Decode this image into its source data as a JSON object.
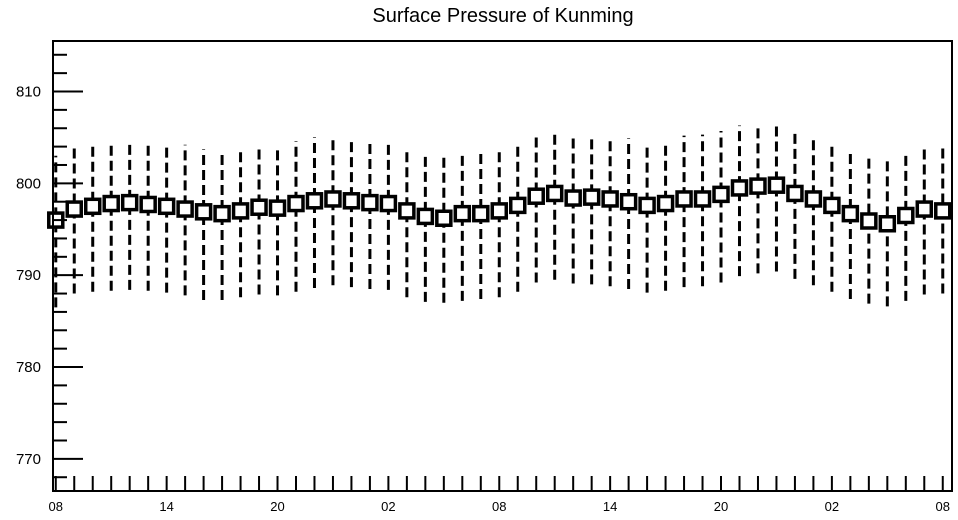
{
  "chart_data": {
    "type": "boxplot",
    "title": "Surface Pressure of Kunming",
    "xlabel": "",
    "ylabel": "",
    "ylim": [
      766.5,
      815.5
    ],
    "yticks": [
      770,
      780,
      790,
      800,
      810
    ],
    "ytick_labels": [
      "770",
      "780",
      "790",
      "800",
      "810"
    ],
    "x_range": [
      -0.15,
      48.5
    ],
    "xticks": [
      0,
      6,
      12,
      18,
      24,
      30,
      36,
      42,
      48
    ],
    "xtick_labels": [
      "08",
      "14",
      "20",
      "02",
      "08",
      "14",
      "20",
      "02",
      "08"
    ],
    "series": [
      {
        "x": [
          0,
          1,
          2,
          3,
          4,
          5,
          6,
          7,
          8,
          9,
          10,
          11,
          12,
          13,
          14,
          15,
          16,
          17,
          18,
          19,
          20,
          21,
          22,
          23,
          24,
          25,
          26,
          27,
          28,
          29,
          30,
          31,
          32,
          33,
          34,
          35,
          36,
          37,
          38,
          39,
          40,
          41,
          42,
          43,
          44,
          45,
          46,
          47,
          48
        ],
        "median": [
          796.0,
          797.2,
          797.5,
          797.8,
          797.9,
          797.7,
          797.5,
          797.2,
          796.9,
          796.7,
          797.0,
          797.4,
          797.3,
          797.8,
          798.1,
          798.3,
          798.1,
          797.9,
          797.8,
          797.0,
          796.4,
          796.2,
          796.7,
          796.7,
          797.0,
          797.6,
          798.6,
          798.9,
          798.4,
          798.5,
          798.3,
          798.0,
          797.6,
          797.8,
          798.3,
          798.3,
          798.8,
          799.5,
          799.7,
          799.8,
          798.9,
          798.3,
          797.6,
          796.7,
          795.9,
          795.6,
          796.5,
          797.2,
          797.0
        ],
        "min": [
          786.5,
          788.0,
          788.2,
          788.3,
          788.4,
          788.3,
          788.1,
          787.8,
          787.3,
          787.3,
          787.6,
          787.9,
          787.8,
          788.2,
          788.6,
          788.9,
          788.7,
          788.5,
          788.4,
          787.6,
          787.1,
          787.0,
          787.2,
          787.4,
          787.6,
          788.2,
          789.2,
          789.5,
          789.1,
          789.0,
          788.8,
          788.5,
          788.1,
          788.3,
          788.7,
          788.8,
          789.2,
          789.9,
          790.2,
          790.4,
          789.6,
          788.9,
          788.2,
          787.4,
          786.9,
          786.6,
          787.2,
          787.9,
          788.0
        ],
        "max": [
          803.0,
          804.2,
          804.4,
          804.6,
          804.7,
          804.5,
          804.3,
          804.2,
          803.7,
          803.6,
          803.9,
          804.2,
          804.1,
          804.6,
          805.0,
          805.2,
          804.9,
          804.8,
          804.7,
          803.9,
          803.4,
          803.2,
          803.5,
          803.6,
          803.9,
          804.5,
          805.5,
          805.8,
          805.3,
          805.3,
          805.1,
          804.9,
          804.4,
          804.6,
          805.2,
          805.3,
          805.7,
          806.3,
          806.5,
          806.6,
          805.7,
          805.2,
          804.5,
          803.6,
          802.8,
          802.5,
          803.3,
          804.0,
          803.9
        ]
      }
    ]
  }
}
